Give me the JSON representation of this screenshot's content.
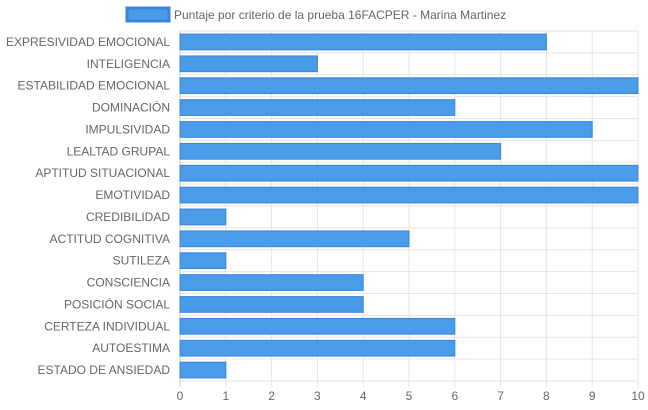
{
  "chart_data": {
    "type": "bar",
    "orientation": "horizontal",
    "categories": [
      "EXPRESIVIDAD EMOCIONAL",
      "INTELIGENCIA",
      "ESTABILIDAD EMOCIONAL",
      "DOMINACIÓN",
      "IMPULSIVIDAD",
      "LEALTAD GRUPAL",
      "APTITUD SITUACIONAL",
      "EMOTIVIDAD",
      "CREDIBILIDAD",
      "ACTITUD COGNITIVA",
      "SUTILEZA",
      "CONSCIENCIA",
      "POSICIÓN SOCIAL",
      "CERTEZA INDIVIDUAL",
      "AUTOESTIMA",
      "ESTADO DE ANSIEDAD"
    ],
    "series": [
      {
        "name": "Puntaje por criterio de la prueba 16FACPER - Marina Martinez",
        "values": [
          8,
          3,
          10,
          6,
          9,
          7,
          10,
          10,
          1,
          5,
          1,
          4,
          4,
          6,
          6,
          1
        ],
        "color": "#4a9be8",
        "border_color": "#3a84e0"
      }
    ],
    "x_ticks": [
      "0",
      "1",
      "2",
      "3",
      "4",
      "5",
      "6",
      "7",
      "8",
      "9",
      "10"
    ],
    "xlim": [
      0,
      10
    ],
    "grid": true,
    "legend_position": "top-center",
    "grid_color": "#e6e6e6",
    "axis_color": "#cccccc"
  }
}
